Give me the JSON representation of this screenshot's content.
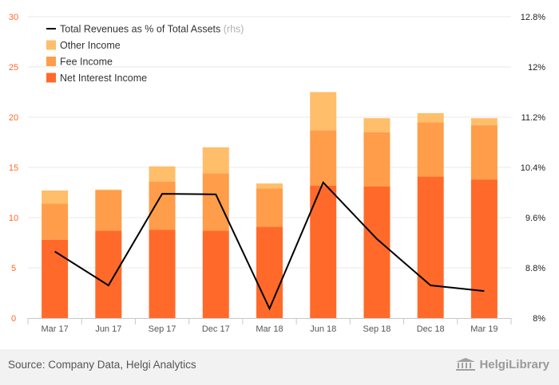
{
  "chart_data": {
    "type": "bar",
    "categories": [
      "Mar 17",
      "Jun 17",
      "Sep 17",
      "Dec 17",
      "Mar 18",
      "Jun 18",
      "Sep 18",
      "Dec 18",
      "Mar 19"
    ],
    "series": [
      {
        "name": "Net Interest Income",
        "values": [
          7.8,
          8.7,
          8.8,
          8.7,
          9.1,
          13.2,
          13.1,
          14.1,
          13.8
        ],
        "color": "#ff6a2a",
        "axis": "left"
      },
      {
        "name": "Fee Income",
        "values": [
          3.6,
          4.0,
          4.8,
          5.7,
          3.8,
          5.5,
          5.4,
          5.4,
          5.4
        ],
        "color": "#ff9d4a",
        "axis": "left"
      },
      {
        "name": "Other Income",
        "values": [
          1.3,
          0.1,
          1.5,
          2.6,
          0.5,
          3.8,
          1.4,
          0.9,
          0.7
        ],
        "color": "#ffbe6a",
        "axis": "left"
      },
      {
        "name": "Total Revenues as % of Total Assets",
        "type": "line",
        "values": [
          9.06,
          8.52,
          9.98,
          9.97,
          8.15,
          10.16,
          9.26,
          8.52,
          8.43
        ],
        "color": "#000000",
        "axis": "right"
      }
    ],
    "legend": {
      "entries": [
        {
          "label": "Total Revenues as % of Total Assets",
          "suffix": "(rhs)",
          "kind": "line",
          "color": "#000000"
        },
        {
          "label": "Other Income",
          "kind": "box",
          "color": "#ffbe6a"
        },
        {
          "label": "Fee Income",
          "kind": "box",
          "color": "#ff9d4a"
        },
        {
          "label": "Net Interest Income",
          "kind": "box",
          "color": "#ff6a2a"
        }
      ],
      "placement": "top-left"
    },
    "y_left": {
      "range": [
        0,
        30
      ],
      "ticks": [
        "0",
        "5",
        "10",
        "15",
        "20",
        "25",
        "30"
      ],
      "tick_values": [
        0,
        5,
        10,
        15,
        20,
        25,
        30
      ],
      "color": "#ff6a2a"
    },
    "y_right": {
      "range": [
        8,
        12.8
      ],
      "ticks": [
        "8%",
        "8.8%",
        "9.6%",
        "10.4%",
        "11.2%",
        "12%",
        "12.8%"
      ],
      "tick_values": [
        8,
        8.8,
        9.6,
        10.4,
        11.2,
        12,
        12.8
      ],
      "color": "#222222"
    },
    "grid": true
  },
  "footer": {
    "source": "Source: Company Data, Helgi Analytics",
    "logo_text": "HelgiLibrary"
  }
}
